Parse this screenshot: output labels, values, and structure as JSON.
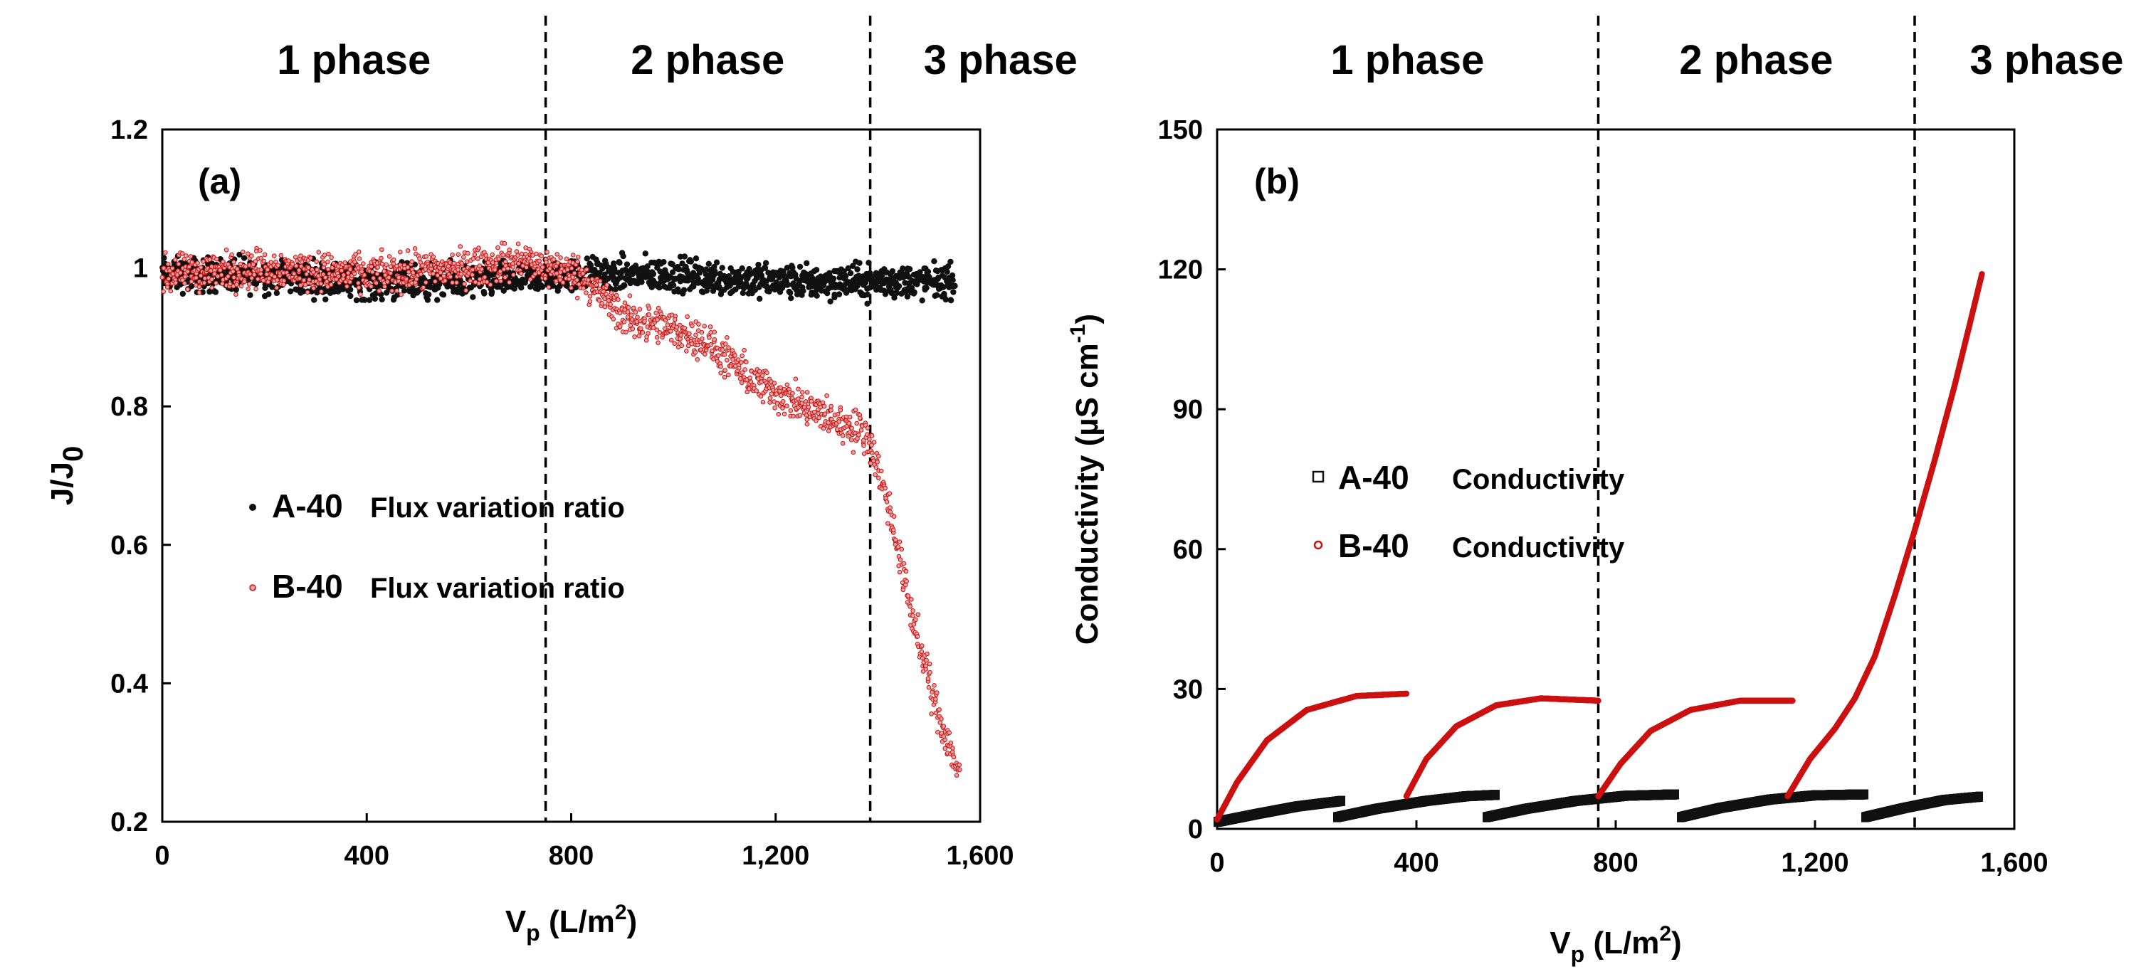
{
  "colors": {
    "seriesA": "#111111",
    "seriesB": "#cc1111",
    "axis": "#000000",
    "divider": "#000000"
  },
  "chart_data": [
    {
      "id": "a",
      "type": "scatter",
      "panel_label": "(a)",
      "ylabel": "J/J",
      "ylabel_sub": "0",
      "xlabel": "V",
      "xlabel_sub": "p",
      "xlabel_unit": " (L/m",
      "xlabel_sup": "2",
      "xlabel_close": ")",
      "xlim": [
        0,
        1600
      ],
      "ylim": [
        0.2,
        1.2
      ],
      "xticks": [
        0,
        400,
        800,
        1200,
        1600
      ],
      "xtick_labels": [
        "0",
        "400",
        "800",
        "1,200",
        "1,600"
      ],
      "yticks": [
        0.2,
        0.4,
        0.6,
        0.8,
        1.0,
        1.2
      ],
      "ytick_labels": [
        "0.2",
        "0.4",
        "0.6",
        "0.8",
        "1",
        "1.2"
      ],
      "phase_dividers": [
        750,
        1385
      ],
      "phases": [
        {
          "label": "1 phase",
          "center": 375
        },
        {
          "label": "2 phase",
          "center": 1067
        },
        {
          "label": "3 phase",
          "center": 1640
        }
      ],
      "legend": [
        {
          "id": "A",
          "name": "A-40",
          "desc": "Flux variation ratio"
        },
        {
          "id": "B",
          "name": "B-40",
          "desc": "Flux variation ratio"
        }
      ],
      "series": [
        {
          "name": "A-40 Flux variation ratio",
          "marker": "dot",
          "x_range": [
            0,
            1550
          ],
          "points": [
            [
              0,
              0.99
            ],
            [
              200,
              0.99
            ],
            [
              400,
              0.98
            ],
            [
              600,
              0.98
            ],
            [
              800,
              0.99
            ],
            [
              1000,
              0.99
            ],
            [
              1200,
              0.98
            ],
            [
              1400,
              0.98
            ],
            [
              1550,
              0.98
            ]
          ],
          "spread": 0.045
        },
        {
          "name": "B-40 Flux variation ratio",
          "marker": "dot",
          "x_range": [
            0,
            1560
          ],
          "points": [
            [
              0,
              0.99
            ],
            [
              200,
              1.0
            ],
            [
              400,
              0.99
            ],
            [
              600,
              1.0
            ],
            [
              700,
              1.01
            ],
            [
              820,
              0.99
            ],
            [
              900,
              0.93
            ],
            [
              1050,
              0.9
            ],
            [
              1150,
              0.84
            ],
            [
              1250,
              0.8
            ],
            [
              1380,
              0.76
            ],
            [
              1420,
              0.66
            ],
            [
              1460,
              0.52
            ],
            [
              1500,
              0.4
            ],
            [
              1530,
              0.33
            ],
            [
              1560,
              0.27
            ]
          ],
          "spread": 0.05
        }
      ]
    },
    {
      "id": "b",
      "type": "scatter",
      "panel_label": "(b)",
      "ylabel": "Conductivity (µS cm",
      "ylabel_sup": "-1",
      "ylabel_close": ")",
      "xlabel": "V",
      "xlabel_sub": "p",
      "xlabel_unit": " (L/m",
      "xlabel_sup": "2",
      "xlabel_close": ")",
      "xlim": [
        0,
        1600
      ],
      "ylim": [
        0,
        150
      ],
      "xticks": [
        0,
        400,
        800,
        1200,
        1600
      ],
      "xtick_labels": [
        "0",
        "400",
        "800",
        "1,200",
        "1,600"
      ],
      "yticks": [
        0,
        30,
        60,
        90,
        120,
        150
      ],
      "ytick_labels": [
        "0",
        "30",
        "60",
        "90",
        "120",
        "150"
      ],
      "phase_dividers": [
        765,
        1400
      ],
      "phases": [
        {
          "label": "1 phase",
          "center": 382
        },
        {
          "label": "2 phase",
          "center": 1082
        },
        {
          "label": "3 phase",
          "center": 1665
        }
      ],
      "legend": [
        {
          "id": "A",
          "name": "A-40",
          "desc": "Conductivity"
        },
        {
          "id": "B",
          "name": "B-40",
          "desc": "Conductivity"
        }
      ],
      "series": [
        {
          "name": "A-40 Conductivity",
          "marker": "square",
          "segments": [
            [
              [
                0,
                1.5
              ],
              [
                80,
                3.2
              ],
              [
                160,
                4.8
              ],
              [
                250,
                6.0
              ]
            ],
            [
              [
                240,
                2.5
              ],
              [
                320,
                4.3
              ],
              [
                420,
                6.0
              ],
              [
                500,
                7.0
              ],
              [
                560,
                7.3
              ]
            ],
            [
              [
                540,
                2.5
              ],
              [
                620,
                4.3
              ],
              [
                720,
                6.0
              ],
              [
                820,
                7.1
              ],
              [
                920,
                7.4
              ]
            ],
            [
              [
                930,
                2.5
              ],
              [
                1010,
                4.5
              ],
              [
                1110,
                6.3
              ],
              [
                1200,
                7.2
              ],
              [
                1300,
                7.4
              ]
            ],
            [
              [
                1300,
                2.5
              ],
              [
                1380,
                4.5
              ],
              [
                1460,
                6.2
              ],
              [
                1530,
                6.9
              ]
            ]
          ]
        },
        {
          "name": "B-40 Conductivity",
          "marker": "dot",
          "segments": [
            [
              [
                0,
                2.0
              ],
              [
                40,
                10.0
              ],
              [
                100,
                19.0
              ],
              [
                180,
                25.5
              ],
              [
                280,
                28.5
              ],
              [
                380,
                29.0
              ]
            ],
            [
              [
                380,
                7.0
              ],
              [
                420,
                15.0
              ],
              [
                480,
                22.0
              ],
              [
                560,
                26.5
              ],
              [
                650,
                28.0
              ],
              [
                765,
                27.5
              ]
            ],
            [
              [
                765,
                7.0
              ],
              [
                810,
                14.0
              ],
              [
                870,
                21.0
              ],
              [
                950,
                25.5
              ],
              [
                1050,
                27.5
              ],
              [
                1155,
                27.5
              ]
            ],
            [
              [
                1145,
                7.0
              ],
              [
                1190,
                15.0
              ],
              [
                1240,
                21.5
              ],
              [
                1280,
                28.0
              ],
              [
                1320,
                37.0
              ],
              [
                1360,
                50.0
              ],
              [
                1400,
                64.0
              ],
              [
                1440,
                79.0
              ],
              [
                1480,
                95.0
              ],
              [
                1510,
                108.0
              ],
              [
                1535,
                119.0
              ]
            ]
          ]
        }
      ]
    }
  ]
}
